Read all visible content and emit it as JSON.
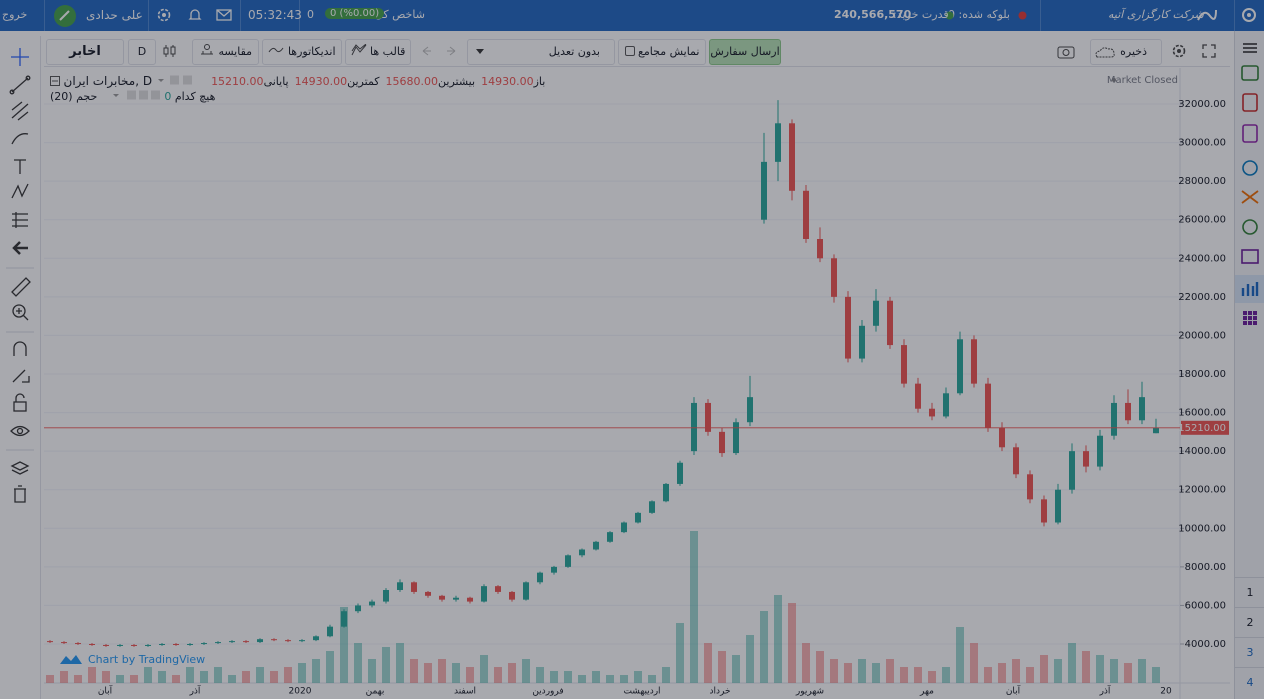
{
  "header": {
    "brand": "شرکت کارگزاری آتیه",
    "blocked": "بلوکه شده: 0",
    "buying_power_label": "قدرت خرید:",
    "buying_power": "240,566,570",
    "index_label": "شاخص کل",
    "index_change": "0 (%0.00)",
    "index_value": "0",
    "time": "05:32:43",
    "user": "علی حدادی",
    "logout": "خروج"
  },
  "toolbar": {
    "send_order": "ارسال سفارش",
    "show_meetings": "نمایش مجامع",
    "adjustment": "بدون تعدیل",
    "templates": "قالب ها",
    "indicators": "اندیکاتورها",
    "compare": "مقایسه",
    "interval": "D",
    "symbol": "اخابر",
    "save": "ذخیره"
  },
  "sidebar_pages": [
    "1",
    "2",
    "3",
    "4"
  ],
  "chart_data": {
    "type": "candlestick",
    "symbol_title": "مخابرات ایران, D",
    "ohlc_legend": [
      {
        "label": "باز",
        "value": "14930.00"
      },
      {
        "label": "بیشترین",
        "value": "15680.00"
      },
      {
        "label": "کمترین",
        "value": "14930.00"
      },
      {
        "label": "پایانی",
        "value": "15210.00"
      }
    ],
    "volume_study": "حجم (20)",
    "volume_ma_label": "هیچ کدام",
    "volume_ma_value": "0",
    "status": "Market Closed",
    "attribution": "Chart by TradingView",
    "x_labels": [
      "آبان",
      "آذر",
      "2020",
      "بهمن",
      "اسفند",
      "فروردین",
      "اردیبهشت",
      "خرداد",
      "شهریور",
      "مهر",
      "آبان",
      "آذر",
      "20"
    ],
    "open": [
      4150,
      4100,
      4050,
      4000,
      3950,
      3900,
      3950,
      3900,
      3950,
      4000,
      3950,
      4000,
      4050,
      4100,
      4150,
      4100,
      4250,
      4200,
      4150,
      4200,
      4400,
      4900,
      5700,
      6000,
      6200,
      6800,
      7200,
      6700,
      6500,
      6300,
      6400,
      6200,
      7000,
      6700,
      6300,
      7200,
      7700,
      8000,
      8600,
      8900,
      9300,
      9800,
      10300,
      10800,
      11400,
      12300,
      14000,
      16500,
      15000,
      13900,
      15500,
      26000,
      29000,
      31000,
      27500,
      25000,
      24000,
      22000,
      18800,
      20500,
      21800,
      19500,
      17500,
      16200,
      15800,
      17000,
      19800,
      17500,
      15200,
      14200,
      12800,
      11500,
      10300,
      12000,
      14000,
      13200,
      14800,
      16500,
      15600,
      14930
    ],
    "high": [
      4200,
      4150,
      4100,
      4050,
      4000,
      4000,
      4000,
      4000,
      4050,
      4050,
      4050,
      4100,
      4150,
      4200,
      4200,
      4300,
      4300,
      4250,
      4250,
      4450,
      5000,
      5800,
      6100,
      6300,
      6900,
      7350,
      7250,
      6750,
      6550,
      6500,
      6450,
      7100,
      7050,
      6750,
      7250,
      7750,
      8050,
      8650,
      8950,
      9350,
      9850,
      10350,
      10850,
      11450,
      12350,
      13500,
      16800,
      16700,
      15200,
      15700,
      17900,
      30500,
      32200,
      31200,
      27800,
      25600,
      24200,
      22300,
      20800,
      22400,
      22000,
      19800,
      17800,
      16500,
      17300,
      20200,
      20000,
      17800,
      15500,
      14400,
      13000,
      11700,
      12300,
      14400,
      14300,
      15100,
      16900,
      17200,
      17600,
      15680
    ],
    "low": [
      4050,
      4000,
      3950,
      3900,
      3850,
      3850,
      3850,
      3850,
      3900,
      3900,
      3900,
      3950,
      4000,
      4050,
      4050,
      4050,
      4150,
      4100,
      4100,
      4150,
      4350,
      4850,
      5600,
      5900,
      6100,
      6700,
      6600,
      6400,
      6200,
      6200,
      6100,
      6150,
      6600,
      6200,
      6250,
      7100,
      7600,
      7950,
      8500,
      8850,
      9250,
      9750,
      10250,
      10750,
      11350,
      12200,
      13800,
      14800,
      13700,
      13800,
      15300,
      25800,
      28000,
      27000,
      24800,
      23800,
      21700,
      18600,
      18600,
      20200,
      19300,
      17300,
      16000,
      15600,
      15700,
      16900,
      17300,
      15000,
      14000,
      12600,
      11300,
      10100,
      10200,
      11800,
      12900,
      13000,
      14600,
      15400,
      15400,
      14930
    ],
    "close": [
      4100,
      4050,
      4000,
      3950,
      3900,
      3950,
      3900,
      3950,
      4000,
      3950,
      4000,
      4050,
      4100,
      4150,
      4100,
      4250,
      4200,
      4150,
      4200,
      4400,
      4900,
      5700,
      6000,
      6200,
      6800,
      7200,
      6700,
      6500,
      6300,
      6400,
      6200,
      7000,
      6700,
      6300,
      7200,
      7700,
      8000,
      8600,
      8900,
      9300,
      9800,
      10300,
      10800,
      11400,
      12300,
      13400,
      16500,
      15000,
      13900,
      15500,
      16800,
      29000,
      31000,
      27500,
      25000,
      24000,
      22000,
      18800,
      20500,
      21800,
      19500,
      17500,
      16200,
      15800,
      17000,
      19800,
      17500,
      15200,
      14200,
      12800,
      11500,
      10300,
      12000,
      14000,
      13200,
      14800,
      16500,
      15600,
      16800,
      15210
    ],
    "volume": [
      1,
      1.5,
      1,
      2,
      1.5,
      1,
      1,
      2,
      1.5,
      1,
      2,
      1.5,
      2,
      1,
      1.5,
      2,
      1.5,
      2,
      2.5,
      3,
      4,
      9.5,
      5,
      3,
      4.5,
      5,
      3,
      2.5,
      3,
      2.5,
      2,
      3.5,
      2,
      2.5,
      3,
      2,
      1.5,
      1.5,
      1,
      1.5,
      1,
      1,
      1.5,
      1,
      2,
      7.5,
      19,
      5,
      4,
      3.5,
      6,
      9,
      11,
      10,
      5,
      4,
      3,
      2.5,
      3,
      2.5,
      3,
      2,
      2,
      1.5,
      2,
      7,
      5,
      2,
      2.5,
      3,
      2,
      3.5,
      3,
      5,
      4,
      3.5,
      3,
      2.5,
      3,
      2
    ],
    "ylim": [
      1978,
      33867
    ],
    "yticks": [
      {
        "value": 4000,
        "label": "4000.00"
      },
      {
        "value": 6000,
        "label": "6000.00"
      },
      {
        "value": 8000,
        "label": "8000.00"
      },
      {
        "value": 10000,
        "label": "10000.00"
      },
      {
        "value": 12000,
        "label": "12000.00"
      },
      {
        "value": 14000,
        "label": "14000.00"
      },
      {
        "value": 16000,
        "label": "16000.00"
      },
      {
        "value": 18000,
        "label": "18000.00"
      },
      {
        "value": 20000,
        "label": "20000.00"
      },
      {
        "value": 22000,
        "label": "22000.00"
      },
      {
        "value": 24000,
        "label": "24000.00"
      },
      {
        "value": 26000,
        "label": "26000.00"
      },
      {
        "value": 28000,
        "label": "28000.00"
      },
      {
        "value": 30000,
        "label": "30000.00"
      },
      {
        "value": 32000,
        "label": "32000.00"
      }
    ],
    "vlim": [
      0,
      20
    ],
    "last_price": {
      "value": 15210,
      "label": "15210.00"
    },
    "up_color": "#26a69a",
    "down_color": "#ef5350",
    "grid": true
  }
}
